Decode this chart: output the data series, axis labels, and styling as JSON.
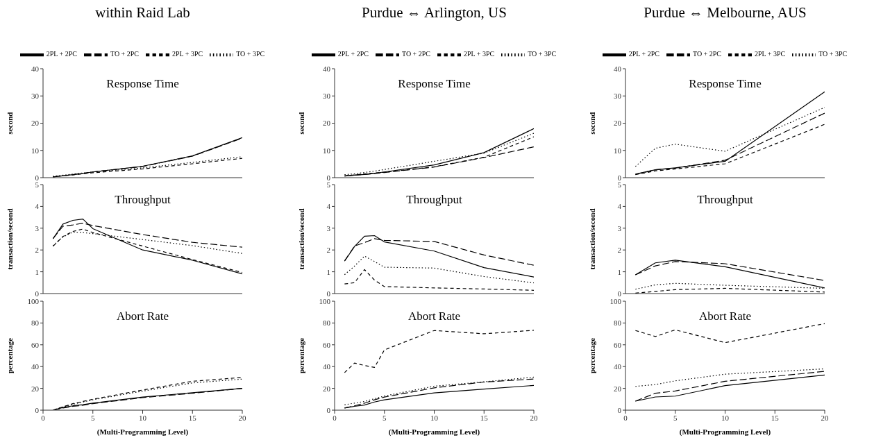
{
  "chart_data": [
    {
      "type": "line",
      "title": "within Raid Lab",
      "ylabel": "second",
      "annotations": [
        "Response Time"
      ],
      "legend": "top",
      "tick_labels": "y",
      "x": [
        1,
        2,
        3,
        4,
        5,
        10,
        15,
        20
      ],
      "xlim": [
        0,
        20
      ],
      "xticks": [
        0,
        5,
        10,
        15,
        20
      ],
      "ylim": [
        0,
        40
      ],
      "yticks": [
        0,
        10,
        20,
        30,
        40
      ],
      "series": [
        {
          "name": "2PL + 2PC",
          "color": "#000000",
          "line_style": "solid",
          "values": [
            0.3,
            0.7,
            1.1,
            1.6,
            2.1,
            4.2,
            8.0,
            14.7
          ]
        },
        {
          "name": "TO + 2PC",
          "color": "#000000",
          "line_style": "dashed",
          "values": [
            0.3,
            0.7,
            1.1,
            1.6,
            2.1,
            4.1,
            7.9,
            14.5
          ]
        },
        {
          "name": "2PL + 3PC",
          "color": "#000000",
          "line_style": "dashed",
          "values": [
            0.3,
            0.7,
            1.0,
            1.4,
            1.8,
            3.2,
            5.1,
            7.1
          ]
        },
        {
          "name": "TO + 3PC",
          "color": "#000000",
          "line_style": "dotted",
          "values": [
            0.5,
            0.9,
            1.3,
            1.7,
            2.1,
            3.6,
            5.6,
            7.7
          ]
        }
      ]
    },
    {
      "type": "line",
      "title": "Purdue ⇔ Arlington, US",
      "ylabel": "second",
      "annotations": [
        "Response Time"
      ],
      "legend": "top",
      "tick_labels": "y",
      "x": [
        1,
        2,
        3,
        4,
        5,
        10,
        15,
        20
      ],
      "xlim": [
        0,
        20
      ],
      "xticks": [
        0,
        5,
        10,
        15,
        20
      ],
      "ylim": [
        0,
        40
      ],
      "yticks": [
        0,
        10,
        20,
        30,
        40
      ],
      "series": [
        {
          "name": "2PL + 2PC",
          "color": "#000000",
          "line_style": "solid",
          "values": [
            0.6,
            0.9,
            1.2,
            1.6,
            2.1,
            4.7,
            9.2,
            18
          ]
        },
        {
          "name": "TO + 2PC",
          "color": "#000000",
          "line_style": "dashed",
          "values": [
            0.6,
            0.9,
            1.2,
            1.5,
            1.9,
            3.9,
            7.4,
            11.3
          ]
        },
        {
          "name": "2PL + 3PC",
          "color": "#000000",
          "line_style": "dashed",
          "values": [
            0.7,
            1.0,
            1.4,
            1.7,
            2.0,
            4.0,
            7.5,
            15
          ]
        },
        {
          "name": "TO + 3PC",
          "color": "#000000",
          "line_style": "dotted",
          "values": [
            1.1,
            1.4,
            1.9,
            2.4,
            3.0,
            6.0,
            9.0,
            16.3
          ]
        }
      ]
    },
    {
      "type": "line",
      "title": "Purdue ⇔ Melbourne, AUS",
      "ylabel": "second",
      "annotations": [
        "Response Time"
      ],
      "legend": "top",
      "tick_labels": "y",
      "x": [
        1,
        3,
        5,
        10,
        20
      ],
      "xlim": [
        0,
        20
      ],
      "xticks": [
        0,
        5,
        10,
        15,
        20
      ],
      "ylim": [
        0,
        40
      ],
      "yticks": [
        0,
        10,
        20,
        30,
        40
      ],
      "series": [
        {
          "name": "2PL + 2PC",
          "color": "#000000",
          "line_style": "solid",
          "values": [
            1.3,
            2.9,
            3.6,
            6.0,
            31.5
          ]
        },
        {
          "name": "TO + 2PC",
          "color": "#000000",
          "line_style": "dashed",
          "values": [
            1.2,
            2.9,
            3.5,
            6.4,
            23.7
          ]
        },
        {
          "name": "2PL + 3PC",
          "color": "#000000",
          "line_style": "dashed",
          "values": [
            1.1,
            2.5,
            3.2,
            5.1,
            19.6
          ]
        },
        {
          "name": "TO + 3PC",
          "color": "#000000",
          "line_style": "dotted",
          "values": [
            4.1,
            10.8,
            12.3,
            9.7,
            25.8
          ]
        }
      ]
    },
    {
      "type": "line",
      "ylabel": "transaction/second",
      "annotations": [
        "Throughput"
      ],
      "tick_labels": "y",
      "x": [
        1,
        2,
        3,
        4,
        5,
        10,
        15,
        20
      ],
      "xlim": [
        0,
        20
      ],
      "xticks": [
        0,
        5,
        10,
        15,
        20
      ],
      "ylim": [
        0,
        5
      ],
      "yticks": [
        0,
        1,
        2,
        3,
        4,
        5
      ],
      "series": [
        {
          "color": "#000000",
          "line_style": "solid",
          "values": [
            2.51,
            3.19,
            3.36,
            3.42,
            2.98,
            2.0,
            1.53,
            0.9
          ]
        },
        {
          "color": "#000000",
          "line_style": "dashed",
          "values": [
            2.53,
            3.09,
            3.15,
            3.23,
            3.12,
            2.71,
            2.35,
            2.13
          ]
        },
        {
          "color": "#000000",
          "line_style": "dashed",
          "values": [
            2.17,
            2.62,
            2.85,
            2.96,
            2.8,
            2.18,
            1.56,
            0.97
          ]
        },
        {
          "color": "#000000",
          "line_style": "dotted",
          "values": [
            2.2,
            2.6,
            2.82,
            2.8,
            2.75,
            2.48,
            2.2,
            1.84
          ]
        }
      ]
    },
    {
      "type": "line",
      "ylabel": "transaction/second",
      "annotations": [
        "Throughput"
      ],
      "tick_labels": "y",
      "x": [
        1,
        2,
        3,
        4,
        5,
        10,
        15,
        20
      ],
      "xlim": [
        0,
        20
      ],
      "xticks": [
        0,
        5,
        10,
        15,
        20
      ],
      "ylim": [
        0,
        5
      ],
      "yticks": [
        0,
        1,
        2,
        3,
        4,
        5
      ],
      "series": [
        {
          "color": "#000000",
          "line_style": "solid",
          "values": [
            1.49,
            2.16,
            2.63,
            2.66,
            2.37,
            1.95,
            1.19,
            0.76
          ]
        },
        {
          "color": "#000000",
          "line_style": "dashed",
          "values": [
            1.5,
            2.18,
            2.34,
            2.52,
            2.44,
            2.39,
            1.77,
            1.3
          ]
        },
        {
          "color": "#000000",
          "line_style": "dashed",
          "values": [
            0.44,
            0.5,
            1.1,
            0.62,
            0.32,
            0.26,
            0.21,
            0.15
          ]
        },
        {
          "color": "#000000",
          "line_style": "dotted",
          "values": [
            0.87,
            1.26,
            1.72,
            1.47,
            1.21,
            1.17,
            0.78,
            0.49
          ]
        }
      ]
    },
    {
      "type": "line",
      "ylabel": "transaction/second",
      "annotations": [
        "Throughput"
      ],
      "tick_labels": "y",
      "x": [
        1,
        3,
        5,
        10,
        20
      ],
      "xlim": [
        0,
        20
      ],
      "xticks": [
        0,
        5,
        10,
        15,
        20
      ],
      "ylim": [
        0,
        5
      ],
      "yticks": [
        0,
        1,
        2,
        3,
        4,
        5
      ],
      "series": [
        {
          "color": "#000000",
          "line_style": "solid",
          "values": [
            0.86,
            1.41,
            1.53,
            1.23,
            0.26
          ]
        },
        {
          "color": "#000000",
          "line_style": "dashed",
          "values": [
            0.86,
            1.27,
            1.47,
            1.37,
            0.6
          ]
        },
        {
          "color": "#000000",
          "line_style": "dashed",
          "values": [
            0.02,
            0.1,
            0.18,
            0.24,
            0.07
          ]
        },
        {
          "color": "#000000",
          "line_style": "dotted",
          "values": [
            0.2,
            0.4,
            0.47,
            0.38,
            0.24
          ]
        }
      ]
    },
    {
      "type": "line",
      "xlabel": "(Multi-Programming Level)",
      "ylabel": "percentage",
      "annotations": [
        "Abort Rate"
      ],
      "x": [
        1,
        2,
        3,
        4,
        5,
        10,
        15,
        20
      ],
      "xlim": [
        0,
        20
      ],
      "xticks": [
        0,
        5,
        10,
        15,
        20
      ],
      "ylim": [
        0,
        100
      ],
      "yticks": [
        0,
        20,
        40,
        60,
        80,
        100
      ],
      "series": [
        {
          "color": "#000000",
          "line_style": "solid",
          "values": [
            0,
            2.5,
            4,
            5,
            6.5,
            12,
            16,
            20
          ]
        },
        {
          "color": "#000000",
          "line_style": "dashed",
          "values": [
            0,
            2,
            3.5,
            4.5,
            6,
            11.5,
            15.5,
            20
          ]
        },
        {
          "color": "#000000",
          "line_style": "dashed",
          "values": [
            0,
            3,
            6,
            8,
            10,
            18.5,
            26.5,
            30
          ]
        },
        {
          "color": "#000000",
          "line_style": "dotted",
          "values": [
            0,
            3,
            5.5,
            7.5,
            9.5,
            17.5,
            25,
            28.5
          ]
        }
      ]
    },
    {
      "type": "line",
      "xlabel": "(Multi-Programming Level)",
      "ylabel": "percentage",
      "annotations": [
        "Abort Rate"
      ],
      "x": [
        1,
        2,
        3,
        4,
        5,
        10,
        15,
        20
      ],
      "xlim": [
        0,
        20
      ],
      "xticks": [
        0,
        5,
        10,
        15,
        20
      ],
      "ylim": [
        0,
        100
      ],
      "yticks": [
        0,
        20,
        40,
        60,
        80,
        100
      ],
      "series": [
        {
          "color": "#000000",
          "line_style": "solid",
          "values": [
            2,
            3.5,
            4.7,
            7.5,
            9.5,
            15.9,
            19.3,
            22.7
          ]
        },
        {
          "color": "#000000",
          "line_style": "dashed",
          "values": [
            2,
            4,
            6.4,
            9.5,
            12,
            20.5,
            25.8,
            28.6
          ]
        },
        {
          "color": "#000000",
          "line_style": "dashed",
          "values": [
            34.5,
            43.2,
            41,
            39.2,
            55.3,
            73.1,
            70.1,
            73.3
          ]
        },
        {
          "color": "#000000",
          "line_style": "dotted",
          "values": [
            4.9,
            6.5,
            8,
            10.5,
            13,
            22,
            26,
            30.3
          ]
        }
      ]
    },
    {
      "type": "line",
      "xlabel": "(Multi-Programming Level)",
      "ylabel": "percentage",
      "annotations": [
        "Abort Rate"
      ],
      "x": [
        1,
        3,
        5,
        10,
        20
      ],
      "xlim": [
        0,
        20
      ],
      "xticks": [
        0,
        5,
        10,
        15,
        20
      ],
      "ylim": [
        0,
        100
      ],
      "yticks": [
        0,
        20,
        40,
        60,
        80,
        100
      ],
      "series": [
        {
          "color": "#000000",
          "line_style": "solid",
          "values": [
            8.3,
            12.1,
            12.9,
            22.5,
            32.2
          ]
        },
        {
          "color": "#000000",
          "line_style": "dashed",
          "values": [
            8.3,
            15.5,
            17.6,
            26.5,
            35.6
          ]
        },
        {
          "color": "#000000",
          "line_style": "dashed",
          "values": [
            73.1,
            67.6,
            73.7,
            62,
            79.4
          ]
        },
        {
          "color": "#000000",
          "line_style": "dotted",
          "values": [
            21.8,
            23.5,
            26.9,
            33,
            37.9
          ]
        }
      ]
    }
  ]
}
